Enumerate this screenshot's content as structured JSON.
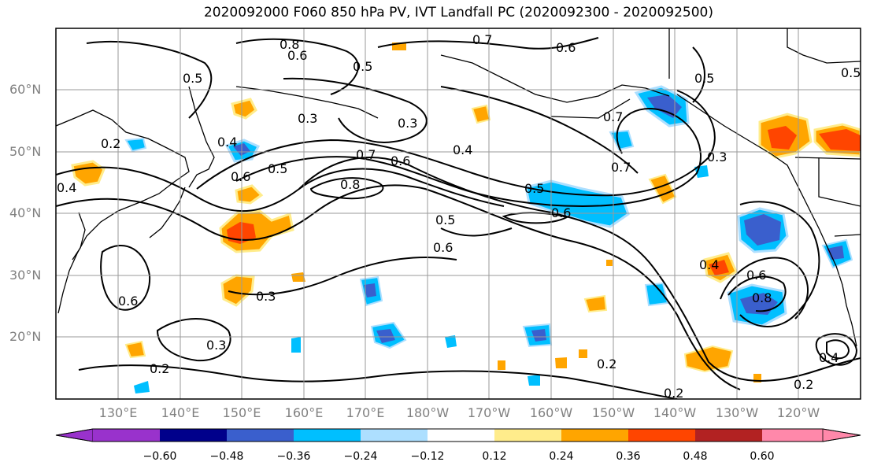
{
  "title": "2020092000 F060 850 hPa PV, IVT Landfall PC (2020092300 - 2020092500)",
  "latitude_labels": [
    "60°N",
    "50°N",
    "40°N",
    "30°N",
    "20°N"
  ],
  "longitude_labels": [
    "130°E",
    "140°E",
    "150°E",
    "160°E",
    "170°E",
    "180°W",
    "170°W",
    "160°W",
    "150°W",
    "140°W",
    "130°W",
    "120°W"
  ],
  "colorbar": {
    "ticks": [
      "−0.60",
      "−0.48",
      "−0.36",
      "−0.24",
      "−0.12",
      "0.12",
      "0.24",
      "0.36",
      "0.48",
      "0.60"
    ],
    "colors": [
      "#9932CC",
      "#00008B",
      "#3A5FCD",
      "#00BFFF",
      "#ADDFFF",
      "#FFFFFF",
      "#FFEC8B",
      "#FFA500",
      "#FF4500",
      "#B22222",
      "#FF88AA"
    ]
  },
  "contour_labels": [
    "0.2",
    "0.3",
    "0.4",
    "0.5",
    "0.6",
    "0.7",
    "0.8"
  ],
  "chart_data": {
    "type": "heatmap",
    "variable_contours": "850 hPa PV",
    "variable_shading": "IVT Landfall PC",
    "lon_range": [
      120,
      250
    ],
    "lat_range": [
      10,
      70
    ],
    "colorbar_levels": [
      -0.6,
      -0.48,
      -0.36,
      -0.24,
      -0.12,
      0.12,
      0.24,
      0.36,
      0.48,
      0.6
    ],
    "contour_levels": [
      0.2,
      0.3,
      0.4,
      0.5,
      0.6,
      0.7,
      0.8
    ],
    "grid": true
  }
}
